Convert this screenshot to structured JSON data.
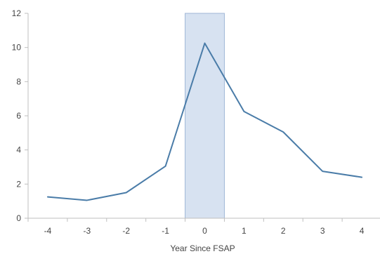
{
  "chart_data": {
    "type": "line",
    "title": "",
    "xlabel": "Year Since FSAP",
    "ylabel": "",
    "x": [
      -4,
      -3,
      -2,
      -1,
      0,
      1,
      2,
      3,
      4
    ],
    "xticks": [
      "-4",
      "-3",
      "-2",
      "-1",
      "0",
      "1",
      "2",
      "3",
      "4"
    ],
    "yticks": [
      "0",
      "2",
      "4",
      "6",
      "8",
      "10",
      "12"
    ],
    "ylim": [
      0,
      12
    ],
    "xlim": [
      -4.5,
      4.5
    ],
    "series": [
      {
        "values": [
          1.25,
          1.05,
          1.5,
          3.05,
          10.25,
          6.25,
          5.05,
          2.75,
          2.4
        ]
      }
    ],
    "highlight_band": {
      "x_from": -0.5,
      "x_to": 0.5
    },
    "colors": {
      "line": "#4a7ca8",
      "band_fill": "#d7e2f1",
      "band_stroke": "#9fb6d6",
      "axis": "#bfbfbf"
    },
    "grid": false,
    "legend": "none"
  }
}
